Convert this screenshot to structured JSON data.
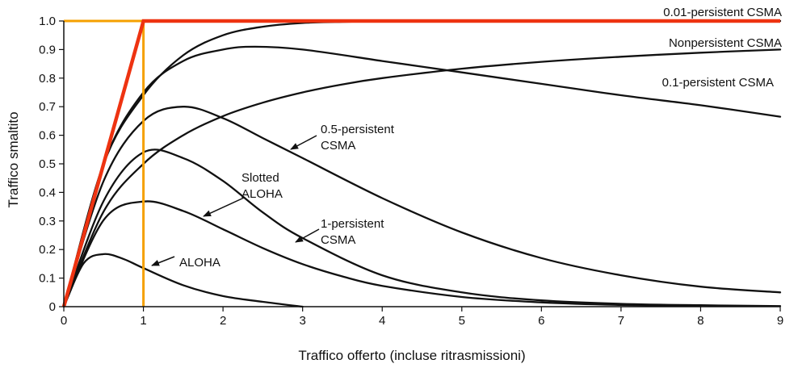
{
  "chart_data": {
    "type": "line",
    "xlabel": "Traffico offerto (incluse ritrasmissioni)",
    "ylabel": "Traffico smaltito",
    "xlim": [
      0,
      9
    ],
    "ylim": [
      0,
      1.0
    ],
    "x_ticks": [
      "0",
      "1",
      "2",
      "3",
      "4",
      "5",
      "6",
      "7",
      "8",
      "9"
    ],
    "y_ticks": [
      "0",
      "0.1",
      "0.2",
      "0.3",
      "0.4",
      "0.5",
      "0.6",
      "0.7",
      "0.8",
      "0.9",
      "1.0"
    ],
    "grid": false,
    "colors": {
      "curves": "#111111",
      "ideal_bound": "#ee3311",
      "unit_load": "#f5a000"
    },
    "series": [
      {
        "name": "0.01-persistent CSMA",
        "label_lines": [
          "0.01-persistent CSMA"
        ],
        "x": [
          0,
          0.5,
          1,
          1.5,
          2,
          2.5,
          3,
          3.5,
          4,
          5,
          6,
          7,
          8,
          9
        ],
        "y": [
          0,
          0.5,
          0.74,
          0.88,
          0.95,
          0.98,
          0.993,
          0.997,
          0.999,
          1.0,
          1.0,
          1.0,
          1.0,
          1.0
        ]
      },
      {
        "name": "Nonpersistent CSMA",
        "label_lines": [
          "Nonpersistent CSMA"
        ],
        "x": [
          0,
          0.5,
          1,
          1.5,
          2,
          2.5,
          3,
          3.5,
          4,
          5,
          6,
          7,
          8,
          9
        ],
        "y": [
          0,
          0.333,
          0.5,
          0.6,
          0.667,
          0.714,
          0.75,
          0.778,
          0.8,
          0.833,
          0.857,
          0.875,
          0.889,
          0.9
        ]
      },
      {
        "name": "0.1-persistent CSMA",
        "label_lines": [
          "0.1-persistent CSMA"
        ],
        "x": [
          0,
          0.5,
          1,
          1.5,
          2,
          2.4,
          3,
          4,
          5,
          6,
          7,
          8,
          9
        ],
        "y": [
          0,
          0.5,
          0.75,
          0.86,
          0.9,
          0.91,
          0.9,
          0.86,
          0.82,
          0.78,
          0.74,
          0.705,
          0.665
        ]
      },
      {
        "name": "0.5-persistent CSMA",
        "label_lines": [
          "0.5-persistent",
          "CSMA"
        ],
        "x": [
          0,
          0.5,
          1,
          1.5,
          2,
          2.5,
          3,
          4,
          5,
          6,
          7,
          8,
          9
        ],
        "y": [
          0,
          0.44,
          0.65,
          0.7,
          0.66,
          0.59,
          0.52,
          0.38,
          0.26,
          0.17,
          0.11,
          0.07,
          0.05
        ]
      },
      {
        "name": "1-persistent CSMA",
        "label_lines": [
          "1-persistent",
          "CSMA"
        ],
        "x": [
          0,
          0.5,
          1,
          1.5,
          2,
          2.5,
          3,
          4,
          5,
          6,
          7,
          8,
          9
        ],
        "y": [
          0,
          0.37,
          0.54,
          0.52,
          0.44,
          0.33,
          0.24,
          0.11,
          0.05,
          0.022,
          0.01,
          0.005,
          0.002
        ]
      },
      {
        "name": "Slotted ALOHA",
        "label_lines": [
          "Slotted",
          "ALOHA"
        ],
        "x": [
          0,
          0.5,
          1,
          1.5,
          2,
          2.5,
          3,
          3.5,
          4,
          5,
          6,
          7,
          8
        ],
        "y": [
          0,
          0.303,
          0.368,
          0.335,
          0.271,
          0.205,
          0.149,
          0.106,
          0.073,
          0.034,
          0.015,
          0.006,
          0.003
        ]
      },
      {
        "name": "ALOHA",
        "label_lines": [
          "ALOHA"
        ],
        "x": [
          0,
          0.25,
          0.5,
          0.75,
          1,
          1.5,
          2,
          2.5,
          3
        ],
        "y": [
          0,
          0.152,
          0.184,
          0.167,
          0.135,
          0.075,
          0.037,
          0.017,
          0.0
        ]
      }
    ],
    "reference_lines": [
      {
        "x": [
          0,
          1,
          9
        ],
        "y": [
          0,
          1.0,
          1.0
        ]
      },
      {
        "x": [
          0,
          1,
          1
        ],
        "y": [
          1.0,
          1.0,
          0
        ]
      }
    ]
  }
}
